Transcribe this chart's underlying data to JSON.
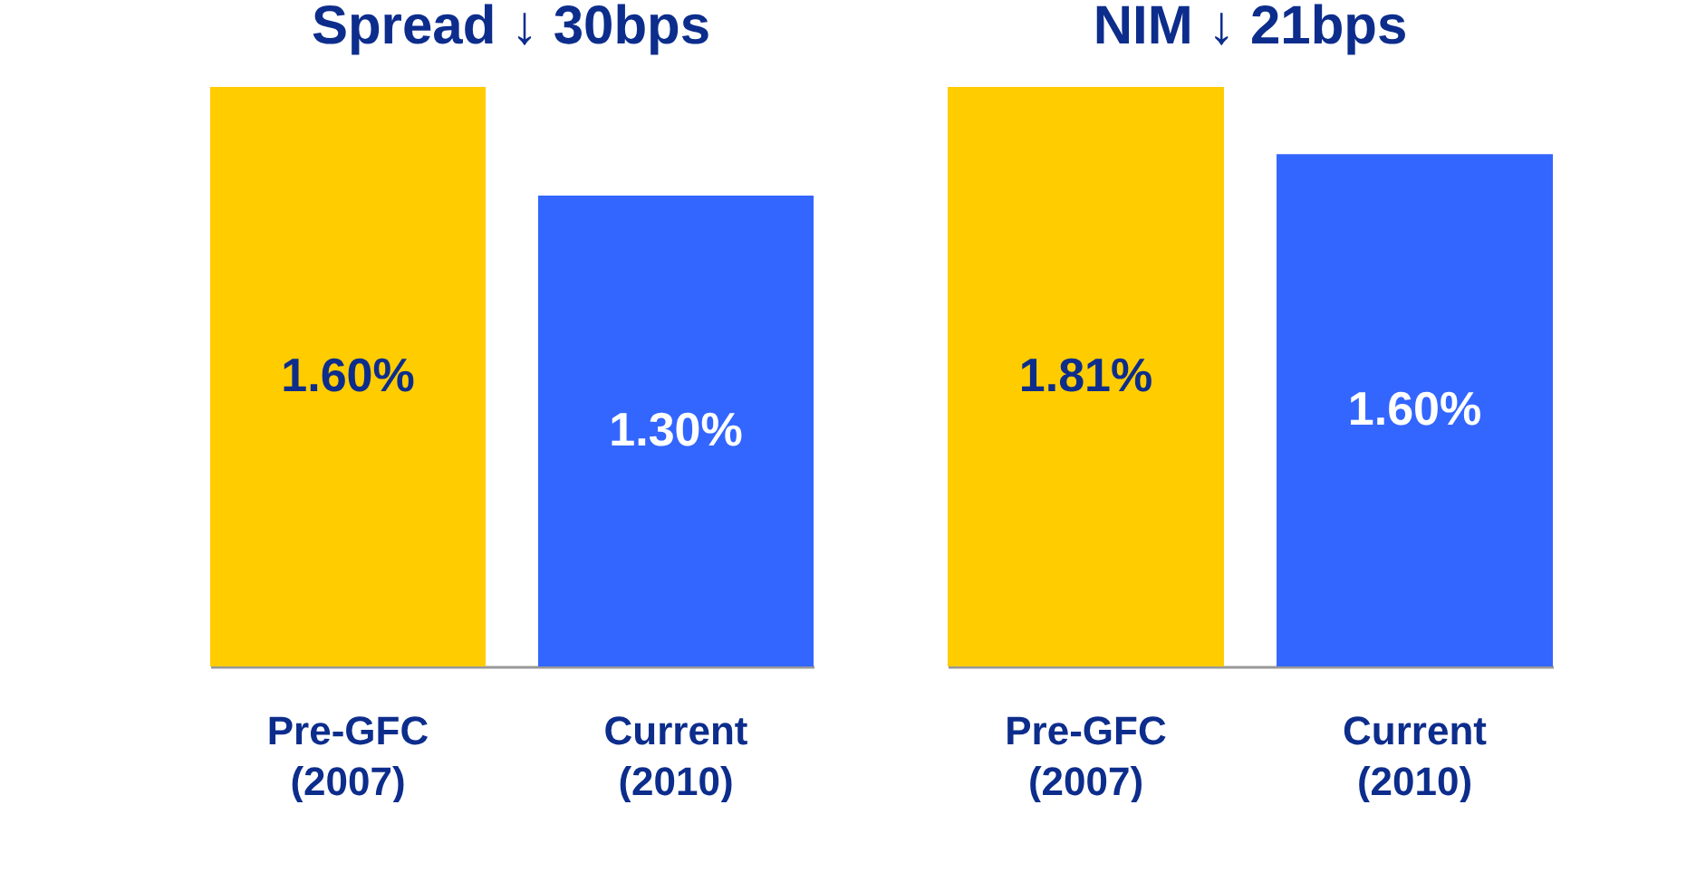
{
  "chart_data": [
    {
      "type": "bar",
      "title": "Spread ↓ 30bps",
      "categories": [
        "Pre-GFC (2007)",
        "Current (2010)"
      ],
      "values": [
        1.6,
        1.3
      ],
      "colors": [
        "#ffcc00",
        "#3366ff"
      ],
      "value_labels": [
        "1.60%",
        "1.30%"
      ],
      "tick_labels": "x"
    },
    {
      "type": "bar",
      "title": "NIM ↓ 21bps",
      "categories": [
        "Pre-GFC (2007)",
        "Current (2010)"
      ],
      "values": [
        1.81,
        1.6
      ],
      "colors": [
        "#ffcc00",
        "#3366ff"
      ],
      "value_labels": [
        "1.81%",
        "1.60%"
      ],
      "tick_labels": "x"
    }
  ]
}
